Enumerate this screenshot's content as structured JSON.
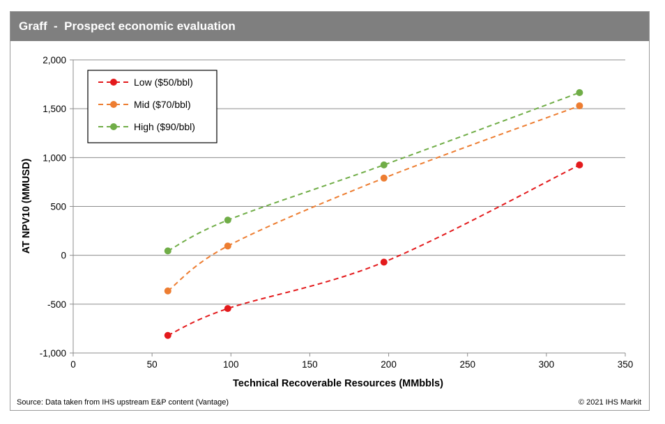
{
  "chart_data": {
    "type": "line",
    "title": "Graff  -  Prospect economic evaluation",
    "xlabel": "Technical Recoverable Resources (MMbbls)",
    "ylabel": "AT NPV10 (MMUSD)",
    "xlim": [
      0,
      350
    ],
    "ylim": [
      -1000,
      2000
    ],
    "x_ticks": [
      "0",
      "50",
      "100",
      "150",
      "200",
      "250",
      "300",
      "350"
    ],
    "y_ticks": [
      "-1,000",
      "-500",
      "0",
      "500",
      "1,000",
      "1,500",
      "2,000"
    ],
    "grid": "horizontal",
    "legend_position": "top-left",
    "series": [
      {
        "name": "Low ($50/bbl)",
        "color": "#e31a1c",
        "points": [
          [
            60,
            -820
          ],
          [
            98,
            -545
          ],
          [
            197,
            -70
          ],
          [
            321,
            925
          ]
        ]
      },
      {
        "name": "Mid ($70/bbl)",
        "color": "#ed7d31",
        "points": [
          [
            60,
            -365
          ],
          [
            98,
            95
          ],
          [
            197,
            790
          ],
          [
            321,
            1530
          ]
        ]
      },
      {
        "name": "High ($90/bbl)",
        "color": "#70ad47",
        "points": [
          [
            60,
            45
          ],
          [
            98,
            360
          ],
          [
            197,
            925
          ],
          [
            321,
            1665
          ]
        ]
      }
    ]
  },
  "footer": {
    "source": "Source: Data taken from IHS upstream E&P content (Vantage)",
    "copyright": "© 2021 IHS Markit"
  }
}
